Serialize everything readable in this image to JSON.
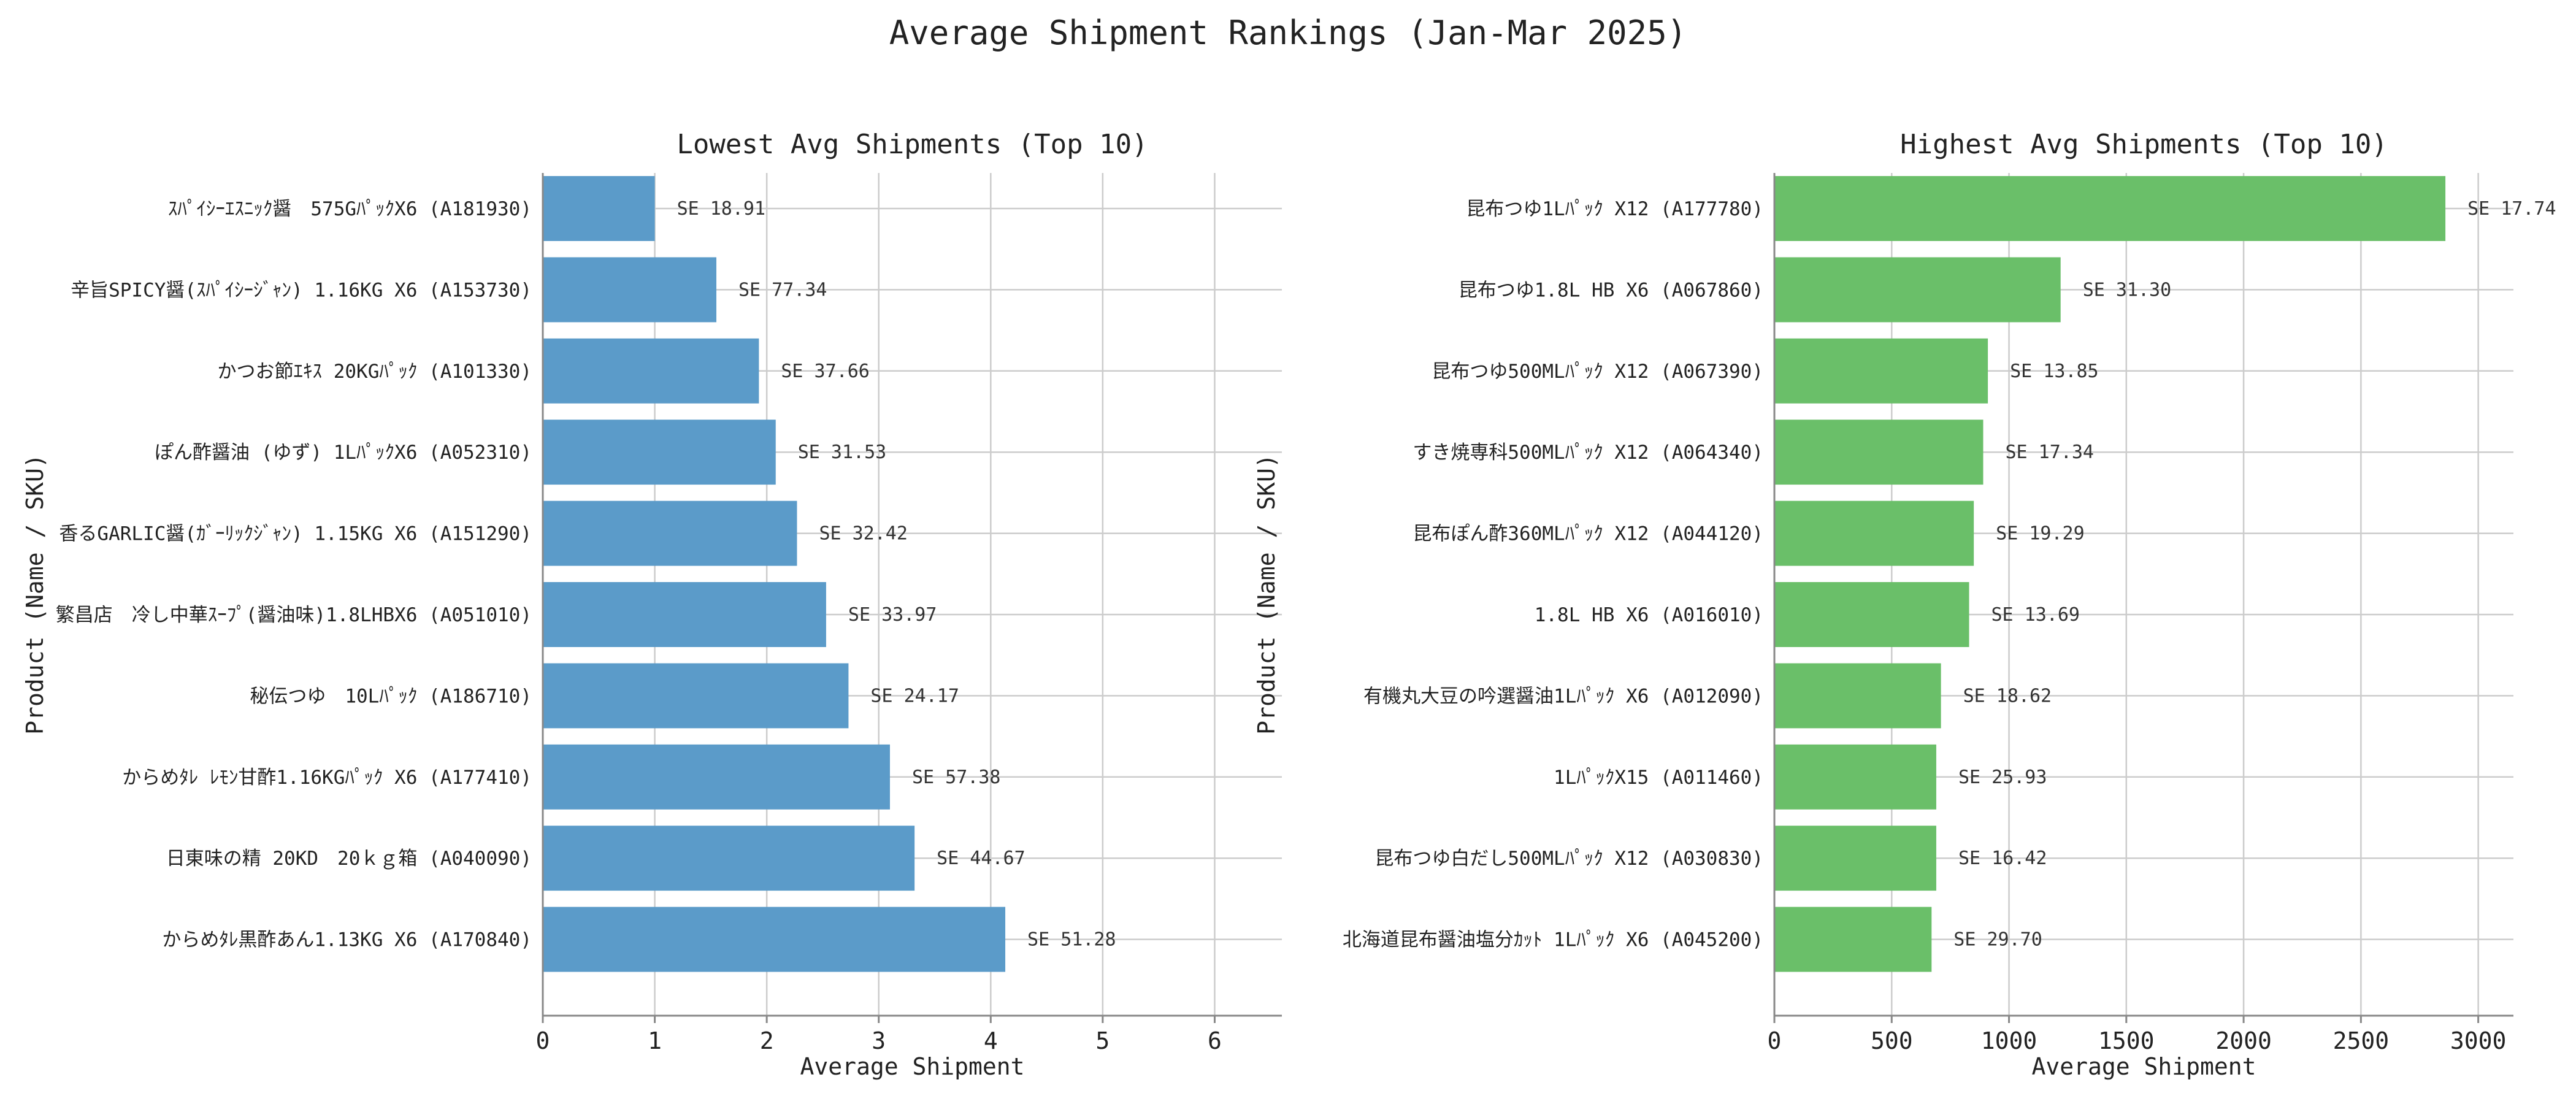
{
  "figure": {
    "title": "Average Shipment Rankings (Jan-Mar 2025)"
  },
  "chart_data": [
    {
      "type": "bar",
      "orientation": "horizontal",
      "title": "Lowest Avg Shipments (Top 10)",
      "xlabel": "Average Shipment",
      "ylabel": "Product (Name / SKU)",
      "xlim": [
        0,
        6.6
      ],
      "xticks": [
        0,
        1,
        2,
        3,
        4,
        5,
        6
      ],
      "grid": true,
      "color": "#5b9bc9",
      "categories": [
        "ｽﾊﾟｲｼｰｴｽﾆｯｸ醤　575GﾊﾟｯｸX6 (A181930)",
        "辛旨SPICY醤(ｽﾊﾟｲｼｰｼﾞｬﾝ) 1.16KG X6 (A153730)",
        "かつお節ｴｷｽ 20KGﾊﾟｯｸ (A101330)",
        "ぽん酢醤油 (ゆず) 1LﾊﾟｯｸX6 (A052310)",
        "香るGARLIC醤(ｶﾞｰﾘｯｸｼﾞｬﾝ) 1.15KG X6 (A151290)",
        "繁昌店　冷し中華ｽｰﾌﾟ(醤油味)1.8LHBX6 (A051010)",
        "秘伝つゆ　10Lﾊﾟｯｸ (A186710)",
        "からめﾀﾚ ﾚﾓﾝ甘酢1.16KGﾊﾟｯｸ X6 (A177410)",
        "日東味の精 20KD　20ｋｇ箱 (A040090)",
        "からめﾀﾚ黒酢あん1.13KG X6 (A170840)"
      ],
      "values": [
        1.0,
        1.55,
        1.93,
        2.08,
        2.27,
        2.53,
        2.73,
        3.1,
        3.32,
        4.13
      ],
      "annotations": [
        "SE 18.91",
        "SE 77.34",
        "SE 37.66",
        "SE 31.53",
        "SE 32.42",
        "SE 33.97",
        "SE 24.17",
        "SE 57.38",
        "SE 44.67",
        "SE 51.28"
      ]
    },
    {
      "type": "bar",
      "orientation": "horizontal",
      "title": "Highest Avg Shipments (Top 10)",
      "xlabel": "Average Shipment",
      "ylabel": "Product (Name / SKU)",
      "xlim": [
        0,
        3150
      ],
      "xticks": [
        0,
        500,
        1000,
        1500,
        2000,
        2500,
        3000
      ],
      "grid": true,
      "color": "#6abf69",
      "categories": [
        "昆布つゆ1Lﾊﾟｯｸ X12 (A177780)",
        "昆布つゆ1.8L HB X6 (A067860)",
        "昆布つゆ500MLﾊﾟｯｸ X12 (A067390)",
        "すき焼専科500MLﾊﾟｯｸ X12 (A064340)",
        "昆布ぽん酢360MLﾊﾟｯｸ X12 (A044120)",
        "1.8L HB X6 (A016010)",
        "有機丸大豆の吟選醤油1Lﾊﾟｯｸ X6 (A012090)",
        "1LﾊﾟｯｸX15 (A011460)",
        "昆布つゆ白だし500MLﾊﾟｯｸ X12 (A030830)",
        "北海道昆布醤油塩分ｶｯﾄ 1Lﾊﾟｯｸ X6 (A045200)"
      ],
      "values": [
        2860,
        1220,
        910,
        890,
        850,
        830,
        710,
        690,
        690,
        670
      ],
      "annotations": [
        "SE 17.74",
        "SE 31.30",
        "SE 13.85",
        "SE 17.34",
        "SE 19.29",
        "SE 13.69",
        "SE 18.62",
        "SE 25.93",
        "SE 16.42",
        "SE 29.70"
      ]
    }
  ]
}
